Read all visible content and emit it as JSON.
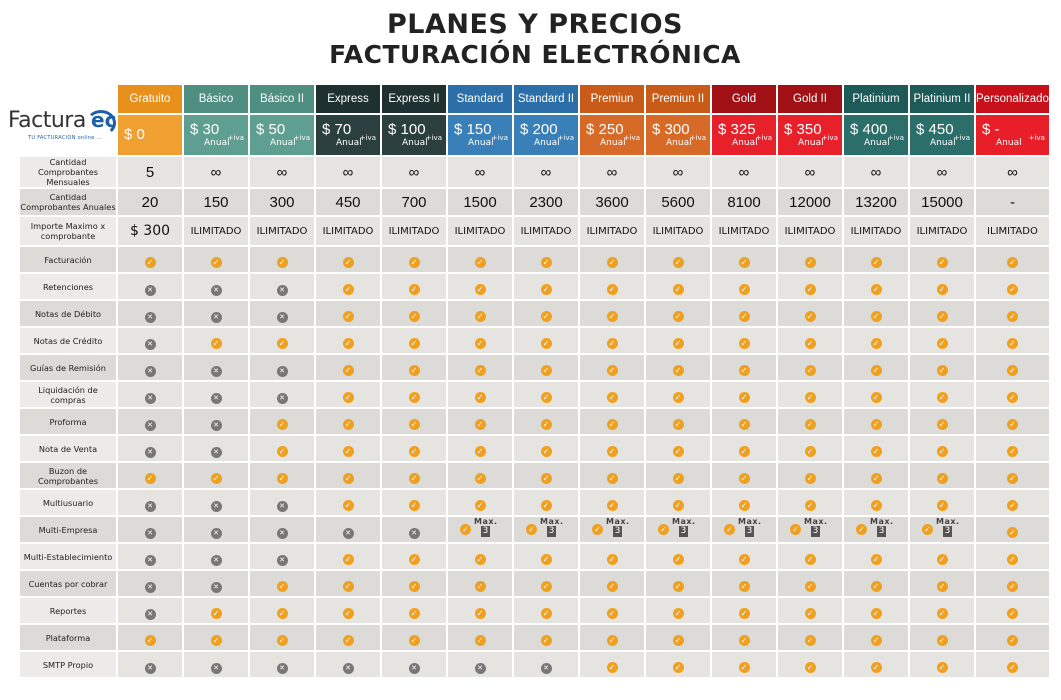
{
  "title": {
    "line1": "PLANES Y PRECIOS",
    "line2": "FACTURACIÓN ELECTRÓNICA"
  },
  "logo": {
    "word": "Factura",
    "ec": "ec",
    "tagline": "TU FACTURACION online ..."
  },
  "colors": {
    "ok": "#f0a020",
    "no": "#777777"
  },
  "plans": [
    {
      "name": "Gratuito",
      "price": "$ 0",
      "period": "",
      "iva": "",
      "name_bg": "#e8901c",
      "price_bg": "#f0a030",
      "mensual": "5",
      "anual": "20",
      "importe": "$ 300"
    },
    {
      "name": "Básico",
      "price": "$ 30",
      "period": "Anual",
      "iva": "+iva",
      "name_bg": "#4e8f82",
      "price_bg": "#5f9f92",
      "mensual": "∞",
      "anual": "150",
      "importe": "ILIMITADO"
    },
    {
      "name": "Básico II",
      "price": "$ 50",
      "period": "Anual",
      "iva": "+iva",
      "name_bg": "#4e8f82",
      "price_bg": "#5f9f92",
      "mensual": "∞",
      "anual": "300",
      "importe": "ILIMITADO"
    },
    {
      "name": "Express",
      "price": "$ 70",
      "period": "Anual",
      "iva": "+iva",
      "name_bg": "#1e3030",
      "price_bg": "#2c3f3f",
      "mensual": "∞",
      "anual": "450",
      "importe": "ILIMITADO"
    },
    {
      "name": "Express II",
      "price": "$ 100",
      "period": "Anual",
      "iva": "+iva",
      "name_bg": "#1e3030",
      "price_bg": "#2c3f3f",
      "mensual": "∞",
      "anual": "700",
      "importe": "ILIMITADO"
    },
    {
      "name": "Standard",
      "price": "$ 150",
      "period": "Anual",
      "iva": "+iva",
      "name_bg": "#2b6ea8",
      "price_bg": "#3a80b8",
      "mensual": "∞",
      "anual": "1500",
      "importe": "ILIMITADO"
    },
    {
      "name": "Standard  II",
      "price": "$ 200",
      "period": "Anual",
      "iva": "+iva",
      "name_bg": "#2b6ea8",
      "price_bg": "#3a80b8",
      "mensual": "∞",
      "anual": "2300",
      "importe": "ILIMITADO"
    },
    {
      "name": "Premiun",
      "price": "$ 250",
      "period": "Anual",
      "iva": "+iva",
      "name_bg": "#c85b18",
      "price_bg": "#d86a28",
      "mensual": "∞",
      "anual": "3600",
      "importe": "ILIMITADO"
    },
    {
      "name": "Premiun II",
      "price": "$ 300",
      "period": "Anual",
      "iva": "+iva",
      "name_bg": "#c85b18",
      "price_bg": "#d86a28",
      "mensual": "∞",
      "anual": "5600",
      "importe": "ILIMITADO"
    },
    {
      "name": "Gold",
      "price": "$ 325",
      "period": "Anual",
      "iva": "+iva",
      "name_bg": "#a01015",
      "price_bg": "#e8202a",
      "mensual": "∞",
      "anual": "8100",
      "importe": "ILIMITADO"
    },
    {
      "name": "Gold II",
      "price": "$ 350",
      "period": "Anual",
      "iva": "+iva",
      "name_bg": "#a01015",
      "price_bg": "#e8202a",
      "mensual": "∞",
      "anual": "12000",
      "importe": "ILIMITADO"
    },
    {
      "name": "Platinium",
      "price": "$ 400",
      "period": "Anual",
      "iva": "+iva",
      "name_bg": "#1e5a58",
      "price_bg": "#2c6e6a",
      "mensual": "∞",
      "anual": "13200",
      "importe": "ILIMITADO"
    },
    {
      "name": "Platinium II",
      "price": "$ 450",
      "period": "Anual",
      "iva": "+iva",
      "name_bg": "#1e5a58",
      "price_bg": "#2c6e6a",
      "mensual": "∞",
      "anual": "15000",
      "importe": "ILIMITADO"
    },
    {
      "name": "Personalizado",
      "price": "$ -",
      "period": "Anual",
      "iva": "+iva",
      "name_bg": "#c8101a",
      "price_bg": "#e81e28",
      "mensual": "∞",
      "anual": "-",
      "importe": "ILIMITADO"
    }
  ],
  "row_labels": {
    "mensual": "Cantidad Comprobantes Mensuales",
    "anual": "Cantidad Comprobantes Anuales",
    "importe": "Importe Maximo x comprobante"
  },
  "max_label": "Max.",
  "features": [
    {
      "label": "Facturación",
      "values": [
        "y",
        "y",
        "y",
        "y",
        "y",
        "y",
        "y",
        "y",
        "y",
        "y",
        "y",
        "y",
        "y",
        "y"
      ]
    },
    {
      "label": "Retenciones",
      "values": [
        "n",
        "n",
        "n",
        "y",
        "y",
        "y",
        "y",
        "y",
        "y",
        "y",
        "y",
        "y",
        "y",
        "y"
      ]
    },
    {
      "label": "Notas de Débito",
      "values": [
        "n",
        "n",
        "n",
        "y",
        "y",
        "y",
        "y",
        "y",
        "y",
        "y",
        "y",
        "y",
        "y",
        "y"
      ]
    },
    {
      "label": "Notas de Crédito",
      "values": [
        "n",
        "y",
        "y",
        "y",
        "y",
        "y",
        "y",
        "y",
        "y",
        "y",
        "y",
        "y",
        "y",
        "y"
      ]
    },
    {
      "label": "Guías de Remisión",
      "values": [
        "n",
        "n",
        "n",
        "y",
        "y",
        "y",
        "y",
        "y",
        "y",
        "y",
        "y",
        "y",
        "y",
        "y"
      ]
    },
    {
      "label": "Liquidación de compras",
      "values": [
        "n",
        "n",
        "n",
        "y",
        "y",
        "y",
        "y",
        "y",
        "y",
        "y",
        "y",
        "y",
        "y",
        "y"
      ]
    },
    {
      "label": "Proforma",
      "values": [
        "n",
        "n",
        "y",
        "y",
        "y",
        "y",
        "y",
        "y",
        "y",
        "y",
        "y",
        "y",
        "y",
        "y"
      ]
    },
    {
      "label": "Nota de Venta",
      "values": [
        "n",
        "n",
        "y",
        "y",
        "y",
        "y",
        "y",
        "y",
        "y",
        "y",
        "y",
        "y",
        "y",
        "y"
      ]
    },
    {
      "label": "Buzon de Comprobantes",
      "values": [
        "y",
        "y",
        "y",
        "y",
        "y",
        "y",
        "y",
        "y",
        "y",
        "y",
        "y",
        "y",
        "y",
        "y"
      ]
    },
    {
      "label": "Multiusuario",
      "values": [
        "n",
        "n",
        "n",
        "y",
        "y",
        "y",
        "y",
        "y",
        "y",
        "y",
        "y",
        "y",
        "y",
        "y"
      ]
    },
    {
      "label": "Multi-Empresa",
      "values": [
        "n",
        "n",
        "n",
        "n",
        "n",
        "3",
        "3",
        "3",
        "3",
        "3",
        "3",
        "3",
        "3",
        "y"
      ]
    },
    {
      "label": "Multi-Establecimiento",
      "values": [
        "n",
        "n",
        "n",
        "y",
        "y",
        "y",
        "y",
        "y",
        "y",
        "y",
        "y",
        "y",
        "y",
        "y"
      ]
    },
    {
      "label": "Cuentas por cobrar",
      "values": [
        "n",
        "n",
        "y",
        "y",
        "y",
        "y",
        "y",
        "y",
        "y",
        "y",
        "y",
        "y",
        "y",
        "y"
      ]
    },
    {
      "label": "Reportes",
      "values": [
        "n",
        "y",
        "y",
        "y",
        "y",
        "y",
        "y",
        "y",
        "y",
        "y",
        "y",
        "y",
        "y",
        "y"
      ]
    },
    {
      "label": "Plataforma",
      "values": [
        "y",
        "y",
        "y",
        "y",
        "y",
        "y",
        "y",
        "y",
        "y",
        "y",
        "y",
        "y",
        "y",
        "y"
      ]
    },
    {
      "label": "SMTP Propio",
      "values": [
        "n",
        "n",
        "n",
        "n",
        "n",
        "n",
        "n",
        "y",
        "y",
        "y",
        "y",
        "y",
        "y",
        "y"
      ]
    }
  ]
}
